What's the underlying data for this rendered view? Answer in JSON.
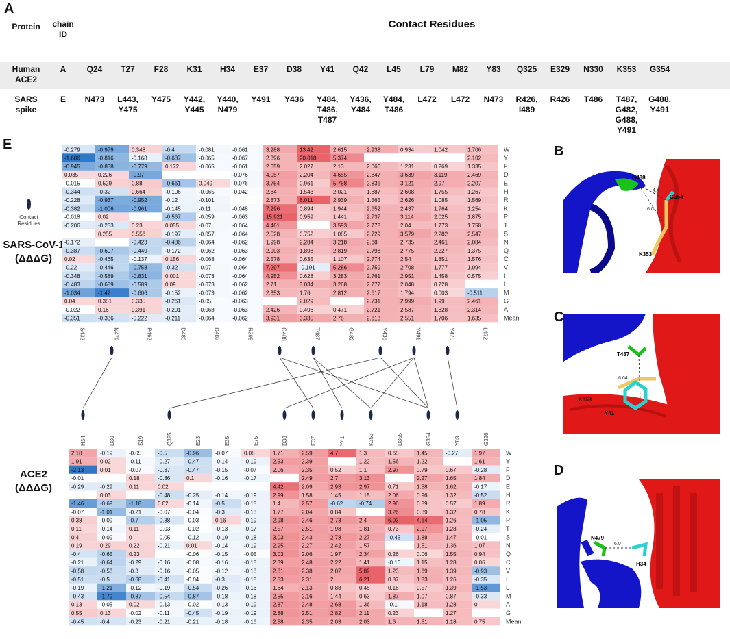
{
  "panels": {
    "A": "A",
    "B": "B",
    "C": "C",
    "D": "D",
    "E": "E"
  },
  "tableA": {
    "header": {
      "protein": "Protein",
      "chain": "chain ID",
      "contact": "Contact Residues"
    },
    "ace2": {
      "protein": "Human ACE2",
      "chain": "A",
      "residues": [
        "Q24",
        "T27",
        "F28",
        "K31",
        "H34",
        "E37",
        "D38",
        "Y41",
        "Q42",
        "L45",
        "L79",
        "M82",
        "Y83",
        "Q325",
        "E329",
        "N330",
        "K353",
        "G354"
      ]
    },
    "sars": {
      "protein": "SARS spike",
      "chain": "E",
      "residues": [
        "N473",
        "L443, Y475",
        "Y475",
        "Y442, Y445",
        "Y440, N479",
        "Y491",
        "Y436",
        "Y484, T486, T487",
        "Y436, Y484",
        "Y484, T486",
        "L472",
        "L472",
        "N473",
        "R426, I489",
        "R426",
        "T486",
        "T487, G482, G488, Y491",
        "G488, Y491"
      ]
    }
  },
  "heatmap1": {
    "label_line1": "SARS-CoV-1",
    "label_line2": "(ΔΔΔG)",
    "contact_legend": "Contact Residues",
    "rows": [
      "W",
      "Y",
      "F",
      "D",
      "E",
      "H",
      "R",
      "K",
      "P",
      "T",
      "S",
      "N",
      "Q",
      "C",
      "V",
      "I",
      "L",
      "M",
      "G",
      "A",
      "Mean"
    ],
    "cols": [
      "S432",
      "N479",
      "P462",
      "D480",
      "D407",
      "R395",
      "G488",
      "T487",
      "G482",
      "Y436",
      "Y491",
      "Y475",
      "L472"
    ],
    "values": [
      [
        "-0.279",
        "-0.979",
        "0.348",
        "-0.4",
        "-0.081",
        "-0.061",
        "3.288",
        "13.42",
        "2.615",
        "2.938",
        "0.934",
        "1.042",
        "1.706"
      ],
      [
        "-1.686",
        "-0.816",
        "-0.168",
        "-0.687",
        "-0.065",
        "-0.067",
        "2.396",
        "20.018",
        "5.374",
        "",
        "",
        "",
        "2.102"
      ],
      [
        "-0.945",
        "-0.838",
        "-0.779",
        "0.172",
        "-0.065",
        "-0.061",
        "2.659",
        "2.027",
        "2.13",
        "2.066",
        "1.231",
        "0.269",
        "1.335"
      ],
      [
        "0.035",
        "0.226",
        "-0.97",
        "",
        "",
        "-0.076",
        "4.057",
        "2.204",
        "4.655",
        "2.847",
        "3.639",
        "3.119",
        "2.469"
      ],
      [
        "-0.015",
        "0.529",
        "0.88",
        "-0.661",
        "0.049",
        "-0.076",
        "3.754",
        "0.961",
        "5.758",
        "2.836",
        "3.121",
        "2.97",
        "2.207"
      ],
      [
        "-0.344",
        "-0.32",
        "0.664",
        "-0.106",
        "-0.065",
        "-0.042",
        "2.84",
        "1.543",
        "2.021",
        "1.887",
        "2.608",
        "1.755",
        "1.267"
      ],
      [
        "-0.228",
        "-0.937",
        "-0.952",
        "-0.12",
        "-0.101",
        "",
        "2.873",
        "8.011",
        "2.939",
        "1.565",
        "2.626",
        "1.085",
        "1.569"
      ],
      [
        "-0.382",
        "-1.006",
        "-0.961",
        "-0.145",
        "-0.11",
        "-0.048",
        "7.296",
        "0.894",
        "1.944",
        "2.652",
        "2.437",
        "1.764",
        "1.254"
      ],
      [
        "-0.018",
        "0.02",
        "",
        "-0.567",
        "-0.059",
        "-0.063",
        "15.921",
        "0.959",
        "1.441",
        "2.737",
        "3.114",
        "2.025",
        "1.875"
      ],
      [
        "-0.206",
        "-0.253",
        "0.23",
        "0.055",
        "-0.07",
        "-0.064",
        "4.461",
        "",
        "3.593",
        "2.778",
        "2.04",
        "1.773",
        "1.758"
      ],
      [
        "",
        "0.255",
        "0.556",
        "-0.197",
        "-0.057",
        "-0.064",
        "2.528",
        "0.752",
        "1.085",
        "2.729",
        "3.579",
        "2.282",
        "2.547"
      ],
      [
        "-0.172",
        "",
        "-0.423",
        "-0.486",
        "-0.064",
        "-0.062",
        "1.998",
        "2.284",
        "3.218",
        "2.68",
        "2.735",
        "2.461",
        "2.084"
      ],
      [
        "-0.387",
        "-0.607",
        "-0.449",
        "-0.172",
        "-0.062",
        "-0.063",
        "2.903",
        "1.898",
        "2.819",
        "2.798",
        "2.775",
        "2.227",
        "1.375"
      ],
      [
        "0.02",
        "-0.465",
        "-0.137",
        "0.156",
        "-0.068",
        "-0.064",
        "2.578",
        "0.635",
        "1.107",
        "2.774",
        "2.54",
        "1.851",
        "1.576"
      ],
      [
        "-0.22",
        "-0.446",
        "-0.758",
        "-0.32",
        "-0.07",
        "-0.064",
        "7.297",
        "-0.191",
        "5.286",
        "2.759",
        "2.708",
        "1.777",
        "1.094"
      ],
      [
        "-0.348",
        "-0.589",
        "-0.831",
        "0.001",
        "-0.073",
        "-0.064",
        "4.952",
        "0.628",
        "3.283",
        "2.761",
        "2.951",
        "1.458",
        "0.575"
      ],
      [
        "-0.483",
        "-0.689",
        "-0.589",
        "0.09",
        "-0.073",
        "-0.062",
        "2.71",
        "3.034",
        "3.268",
        "2.777",
        "2.048",
        "0.728",
        ""
      ],
      [
        "-1.034",
        "-1.42",
        "-0.606",
        "-0.152",
        "-0.073",
        "-0.062",
        "2.353",
        "1.76",
        "2.812",
        "2.617",
        "1.794",
        "0.003",
        "-0.511"
      ],
      [
        "0.04",
        "0.351",
        "0.335",
        "-0.261",
        "-0.05",
        "-0.063",
        "",
        "2.029",
        "",
        "2.731",
        "2.999",
        "1.99",
        "2.461"
      ],
      [
        "-0.022",
        "0.16",
        "0.391",
        "-0.201",
        "-0.068",
        "-0.063",
        "2.426",
        "0.496",
        "0.471",
        "2.721",
        "2.587",
        "1.828",
        "2.314"
      ],
      [
        "-0.351",
        "-0.336",
        "-0.222",
        "-0.211",
        "-0.064",
        "-0.062",
        "3.931",
        "3.335",
        "2.78",
        "2.613",
        "2.551",
        "1.706",
        "1.635"
      ]
    ]
  },
  "heatmap2": {
    "label_line1": "ACE2",
    "label_line2": "(ΔΔΔG)",
    "rows": [
      "W",
      "Y",
      "F",
      "D",
      "E",
      "H",
      "R",
      "K",
      "P",
      "T",
      "S",
      "N",
      "Q",
      "C",
      "V",
      "I",
      "L",
      "M",
      "A",
      "G",
      "Mean"
    ],
    "cols": [
      "H34",
      "D30",
      "S19",
      "Q325",
      "E23",
      "E35",
      "E75",
      "D38",
      "E37",
      "Y41",
      "K353",
      "D355",
      "G354",
      "Y83",
      "G326"
    ],
    "values": [
      [
        "2.18",
        "-0.19",
        "-0.05",
        "-0.5",
        "-0.96",
        "-0.07",
        "0.08",
        "1.71",
        "2.59",
        "4.7",
        "1.3",
        "0.65",
        "1.45",
        "-0.27",
        "1.97"
      ],
      [
        "1.91",
        "0.02",
        "-0.11",
        "-0.27",
        "-0.47",
        "-0.14",
        "-0.19",
        "2.53",
        "2.39",
        "",
        "1.22",
        "1.56",
        "1.22",
        "",
        "1.61"
      ],
      [
        "-2.13",
        "0.01",
        "-0.07",
        "-0.37",
        "-0.47",
        "-0.15",
        "-0.07",
        "2.06",
        "2.35",
        "0.52",
        "1.1",
        "2.97",
        "0.79",
        "0.67",
        "-0.28"
      ],
      [
        "-0.01",
        "",
        "0.18",
        "-0.36",
        "0.1",
        "-0.16",
        "-0.17",
        "",
        "2.49",
        "2.7",
        "3.13",
        "",
        "2.27",
        "1.65",
        "1.84"
      ],
      [
        "-0.29",
        "-0.29",
        "0.11",
        "0.02",
        "",
        "",
        "",
        "4.42",
        "2.09",
        "2.93",
        "2.97",
        "0.71",
        "1.58",
        "1.62",
        "-0.17"
      ],
      [
        "",
        "0.03",
        "",
        "-0.48",
        "-0.25",
        "-0.14",
        "-0.19",
        "2.99",
        "1.58",
        "1.45",
        "1.15",
        "2.06",
        "0.96",
        "1.32",
        "-0.52"
      ],
      [
        "-1.46",
        "-0.69",
        "-1.18",
        "0.02",
        "-0.14",
        "-0.5",
        "-0.18",
        "1.4",
        "2.57",
        "-0.62",
        "-0.74",
        "2.96",
        "0.89",
        "0.57",
        "1.89"
      ],
      [
        "-0.07",
        "-1.01",
        "-0.21",
        "-0.07",
        "-0.04",
        "-0.3",
        "-0.18",
        "1.77",
        "2.04",
        "0.84",
        "",
        "3.26",
        "0.89",
        "1.32",
        "0.78"
      ],
      [
        "0.38",
        "-0.09",
        "-0.7",
        "-0.38",
        "-0.03",
        "0.16",
        "-0.19",
        "2.98",
        "2.46",
        "2.73",
        "2.4",
        "6.03",
        "4.64",
        "1.26",
        "-1.05"
      ],
      [
        "0.11",
        "-0.14",
        "0.11",
        "-0.03",
        "-0.02",
        "-0.13",
        "-0.17",
        "2.57",
        "2.51",
        "1.98",
        "1.81",
        "0.73",
        "2.97",
        "1.28",
        "-0.24"
      ],
      [
        "0.4",
        "-0.09",
        "0",
        "-0.05",
        "-0.12",
        "-0.19",
        "-0.18",
        "3.03",
        "2.43",
        "2.78",
        "2.27",
        "-0.45",
        "1.88",
        "1.47",
        "-0.01"
      ],
      [
        "0.19",
        "0.29",
        "0.22",
        "-0.21",
        "0.01",
        "-0.14",
        "-0.19",
        "2.95",
        "2.27",
        "2.42",
        "1.57",
        "",
        "1.51",
        "1.36",
        "1.07"
      ],
      [
        "-0.4",
        "-0.65",
        "0.23",
        "",
        "-0.06",
        "-0.15",
        "-0.05",
        "3.03",
        "2.06",
        "1.97",
        "2.34",
        "0.26",
        "0.06",
        "1.55",
        "0.94"
      ],
      [
        "-0.21",
        "-0.64",
        "-0.29",
        "-0.16",
        "-0.08",
        "-0.16",
        "-0.18",
        "2.39",
        "2.48",
        "2.22",
        "1.41",
        "-0.16",
        "1.15",
        "1.28",
        "0.06"
      ],
      [
        "-0.58",
        "-0.53",
        "-0.3",
        "-0.16",
        "-0.05",
        "-0.12",
        "-0.18",
        "2.81",
        "2.38",
        "2.07",
        "5.89",
        "1.23",
        "1.69",
        "1.39",
        "-0.93"
      ],
      [
        "-0.51",
        "-0.5",
        "-0.68",
        "-0.41",
        "-0.04",
        "-0.3",
        "-0.18",
        "2.53",
        "2.31",
        "2",
        "6.21",
        "0.87",
        "1.83",
        "1.26",
        "-0.35"
      ],
      [
        "-0.19",
        "-1.21",
        "-0.12",
        "-0.19",
        "-0.54",
        "-0.26",
        "-0.16",
        "1.64",
        "2.13",
        "0.88",
        "0.45",
        "0.18",
        "0.57",
        "1.39",
        "-1.53"
      ],
      [
        "-0.43",
        "-1.79",
        "-0.87",
        "-0.54",
        "-0.87",
        "-0.18",
        "-0.18",
        "2.55",
        "2.16",
        "1.44",
        "0.63",
        "1.87",
        "1.07",
        "0.87",
        "-0.33"
      ],
      [
        "0.13",
        "-0.05",
        "0.02",
        "-0.13",
        "-0.02",
        "-0.13",
        "-0.19",
        "2.87",
        "2.48",
        "2.68",
        "1.36",
        "-0.1",
        "1.18",
        "1.28",
        "0"
      ],
      [
        "0.55",
        "0.13",
        "-0.02",
        "-0.11",
        "-0.45",
        "-0.19",
        "-0.19",
        "2.88",
        "2.51",
        "2.82",
        "2.11",
        "0.23",
        "",
        "1.27",
        ""
      ],
      [
        "-0.45",
        "-0.4",
        "-0.23",
        "-0.21",
        "-0.21",
        "-0.18",
        "-0.16",
        "2.58",
        "2.35",
        "2.03",
        "2.03",
        "1.6",
        "1.51",
        "1.18",
        "0.75"
      ]
    ]
  },
  "structures": {
    "B": {
      "labels": [
        "G488",
        "G354",
        "K353",
        "4.4",
        "6.0"
      ]
    },
    "C": {
      "labels": [
        "T487",
        "K353",
        "Y41",
        "6.64"
      ]
    },
    "D": {
      "labels": [
        "N479",
        "H34",
        "6.0"
      ]
    }
  },
  "colors": {
    "blue": "#2f78c4",
    "red": "#e8666b",
    "box_red": "#d62728",
    "box_blue": "#1f77b4",
    "protein_blue": "#1414c8",
    "protein_red": "#e01818"
  }
}
